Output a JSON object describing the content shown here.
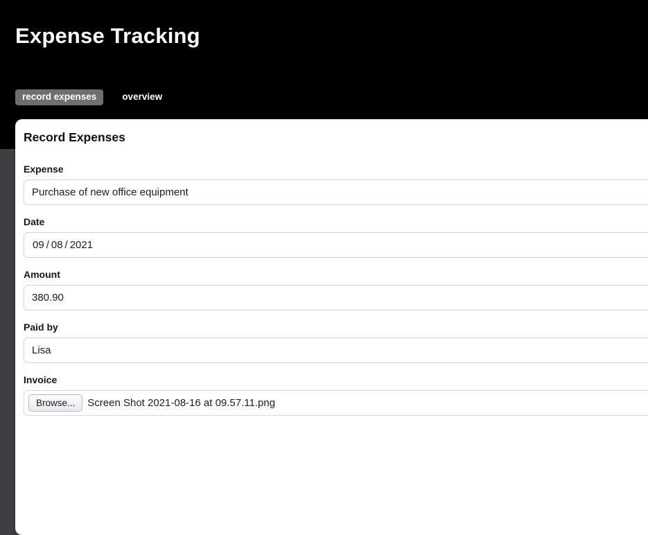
{
  "header": {
    "title": "Expense Tracking",
    "tabs": [
      {
        "label": "record expenses",
        "active": true
      },
      {
        "label": "overview",
        "active": false
      }
    ]
  },
  "card": {
    "heading": "Record Expenses",
    "fields": {
      "expense": {
        "label": "Expense",
        "value": "Purchase of new office equipment"
      },
      "date": {
        "label": "Date",
        "month": "09",
        "day": "08",
        "year": "2021",
        "separator": "/"
      },
      "amount": {
        "label": "Amount",
        "value": "380.90"
      },
      "paid_by": {
        "label": "Paid by",
        "value": "Lisa"
      },
      "invoice": {
        "label": "Invoice",
        "browse_label": "Browse...",
        "filename": "Screen Shot 2021-08-16 at 09.57.11.png"
      }
    }
  },
  "colors": {
    "header_bg": "#000000",
    "page_bg": "#3f3f41",
    "active_tab_bg": "#6e6e6e",
    "card_bg": "#ffffff",
    "input_border": "#d4d4d8",
    "text_dark": "#1c1c1e",
    "text_light": "#ffffff"
  }
}
